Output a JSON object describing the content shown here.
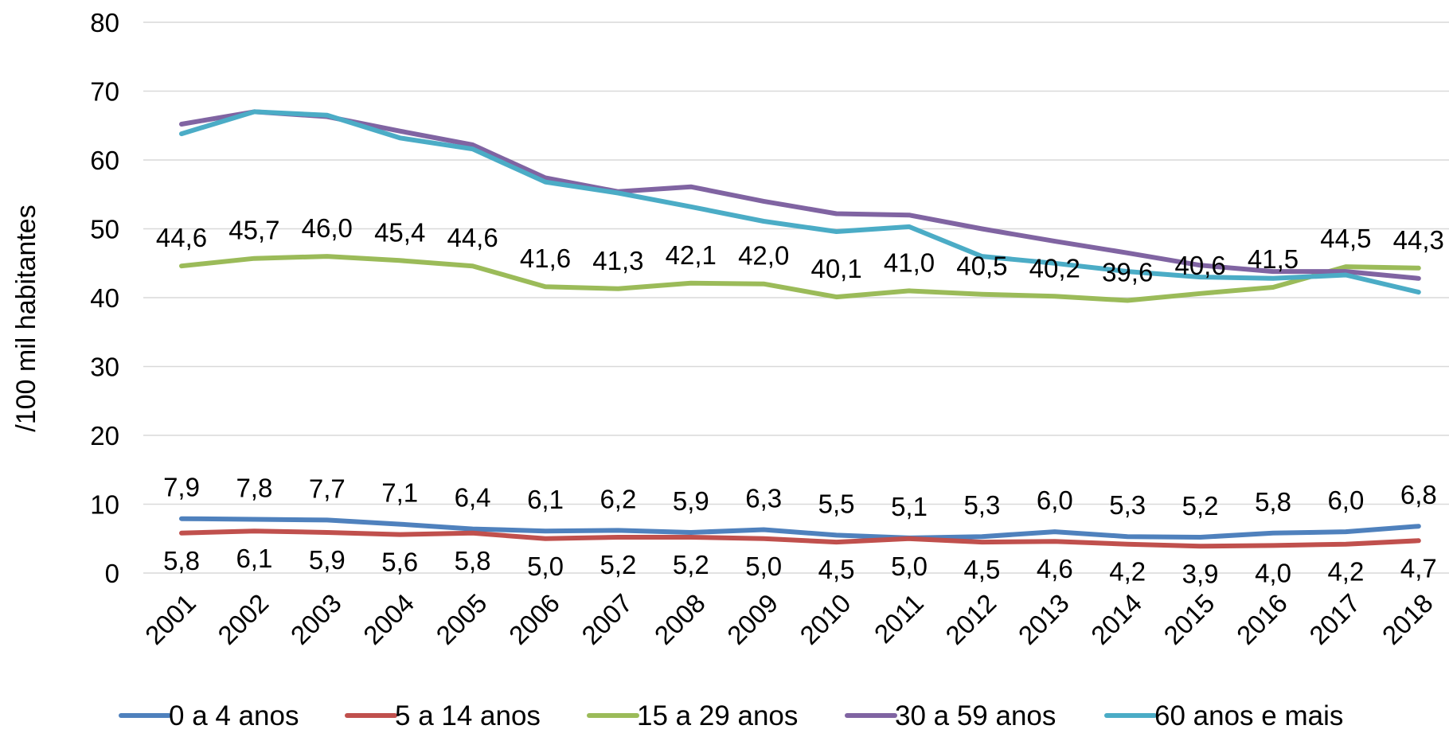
{
  "chart_data": {
    "type": "line",
    "title": "",
    "xlabel": "",
    "ylabel": "/100 mil habitantes",
    "ylim": [
      0,
      80
    ],
    "yticks": [
      0,
      10,
      20,
      30,
      40,
      50,
      60,
      70,
      80
    ],
    "ytick_labels": [
      "0",
      "10",
      "20",
      "30",
      "40",
      "50",
      "60",
      "70",
      "80"
    ],
    "grid": "horizontal",
    "legend": "bottom",
    "x": [
      "2001",
      "2002",
      "2003",
      "2004",
      "2005",
      "2006",
      "2007",
      "2008",
      "2009",
      "2010",
      "2011",
      "2012",
      "2013",
      "2014",
      "2015",
      "2016",
      "2017",
      "2018"
    ],
    "series": [
      {
        "name": "0 a 4 anos",
        "color": "#4F81BD",
        "values": [
          7.9,
          7.8,
          7.7,
          7.1,
          6.4,
          6.1,
          6.2,
          5.9,
          6.3,
          5.5,
          5.1,
          5.3,
          6.0,
          5.3,
          5.2,
          5.8,
          6.0,
          6.8
        ],
        "data_labels": [
          "7,9",
          "7,8",
          "7,7",
          "7,1",
          "6,4",
          "6,1",
          "6,2",
          "5,9",
          "6,3",
          "5,5",
          "5,1",
          "5,3",
          "6,0",
          "5,3",
          "5,2",
          "5,8",
          "6,0",
          "6,8"
        ]
      },
      {
        "name": "5 a 14 anos",
        "color": "#C0504D",
        "values": [
          5.8,
          6.1,
          5.9,
          5.6,
          5.8,
          5.0,
          5.2,
          5.2,
          5.0,
          4.5,
          5.0,
          4.5,
          4.6,
          4.2,
          3.9,
          4.0,
          4.2,
          4.7
        ],
        "data_labels": [
          "5,8",
          "6,1",
          "5,9",
          "5,6",
          "5,8",
          "5,0",
          "5,2",
          "5,2",
          "5,0",
          "4,5",
          "5,0",
          "4,5",
          "4,6",
          "4,2",
          "3,9",
          "4,0",
          "4,2",
          "4,7"
        ]
      },
      {
        "name": "15 a 29 anos",
        "color": "#9BBB59",
        "values": [
          44.6,
          45.7,
          46.0,
          45.4,
          44.6,
          41.6,
          41.3,
          42.1,
          42.0,
          40.1,
          41.0,
          40.5,
          40.2,
          39.6,
          40.6,
          41.5,
          44.5,
          44.3
        ],
        "data_labels": [
          "44,6",
          "45,7",
          "46,0",
          "45,4",
          "44,6",
          "41,6",
          "41,3",
          "42,1",
          "42,0",
          "40,1",
          "41,0",
          "40,5",
          "40,2",
          "39,6",
          "40,6",
          "41,5",
          "44,5",
          "44,3"
        ]
      },
      {
        "name": "30 a 59 anos",
        "color": "#8064A2",
        "values": [
          65.2,
          67.0,
          66.3,
          64.2,
          62.2,
          57.4,
          55.4,
          56.1,
          54.0,
          52.2,
          52.0,
          50.0,
          48.2,
          46.5,
          44.7,
          43.8,
          43.8,
          42.8
        ],
        "data_labels": []
      },
      {
        "name": "60 anos e mais",
        "color": "#4BACC6",
        "values": [
          63.8,
          67.0,
          66.5,
          63.2,
          61.6,
          56.8,
          55.2,
          53.2,
          51.1,
          49.6,
          50.3,
          46.0,
          45.0,
          43.8,
          43.0,
          42.8,
          43.3,
          40.8
        ],
        "data_labels": []
      }
    ]
  }
}
